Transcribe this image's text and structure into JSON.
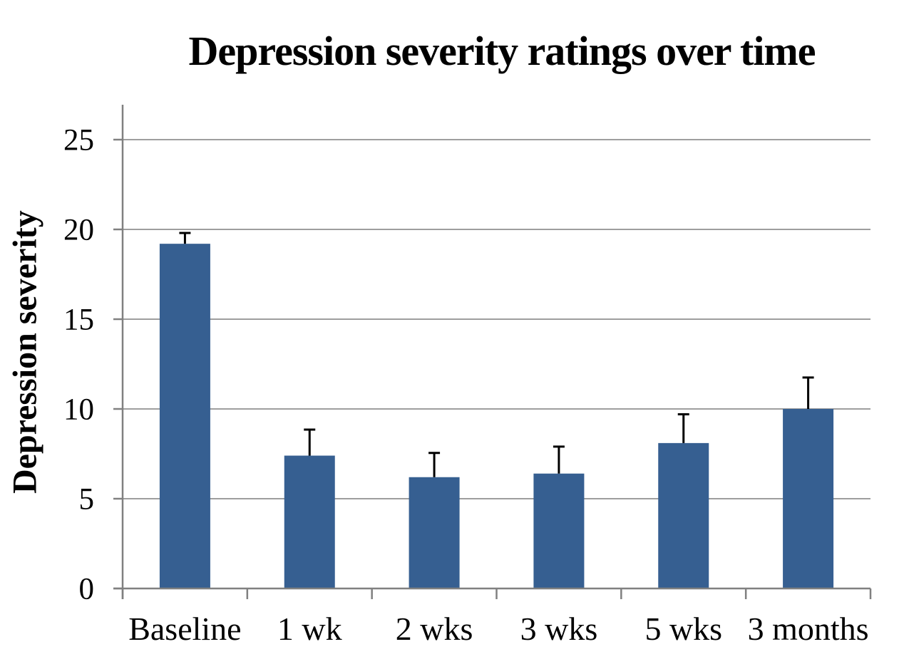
{
  "chart_data": {
    "type": "bar",
    "title": "Depression severity ratings over time",
    "xlabel": "",
    "ylabel": "Depression severity",
    "categories": [
      "Baseline",
      "1 wk",
      "2 wks",
      "3 wks",
      "5 wks",
      "3 months"
    ],
    "values": [
      19.2,
      7.4,
      6.2,
      6.4,
      8.1,
      10.0
    ],
    "errors_plus": [
      0.6,
      1.45,
      1.35,
      1.5,
      1.6,
      1.75
    ],
    "yticks": [
      0,
      5,
      10,
      15,
      20,
      25
    ],
    "ylim": [
      0,
      25
    ],
    "grid": "horizontal",
    "legend": null,
    "colors": {
      "bar": "#365F91",
      "gridline": "#9E9E9E",
      "axis": "#808080",
      "error_bar": "#000000",
      "text": "#000000",
      "background": "#FFFFFF"
    }
  }
}
